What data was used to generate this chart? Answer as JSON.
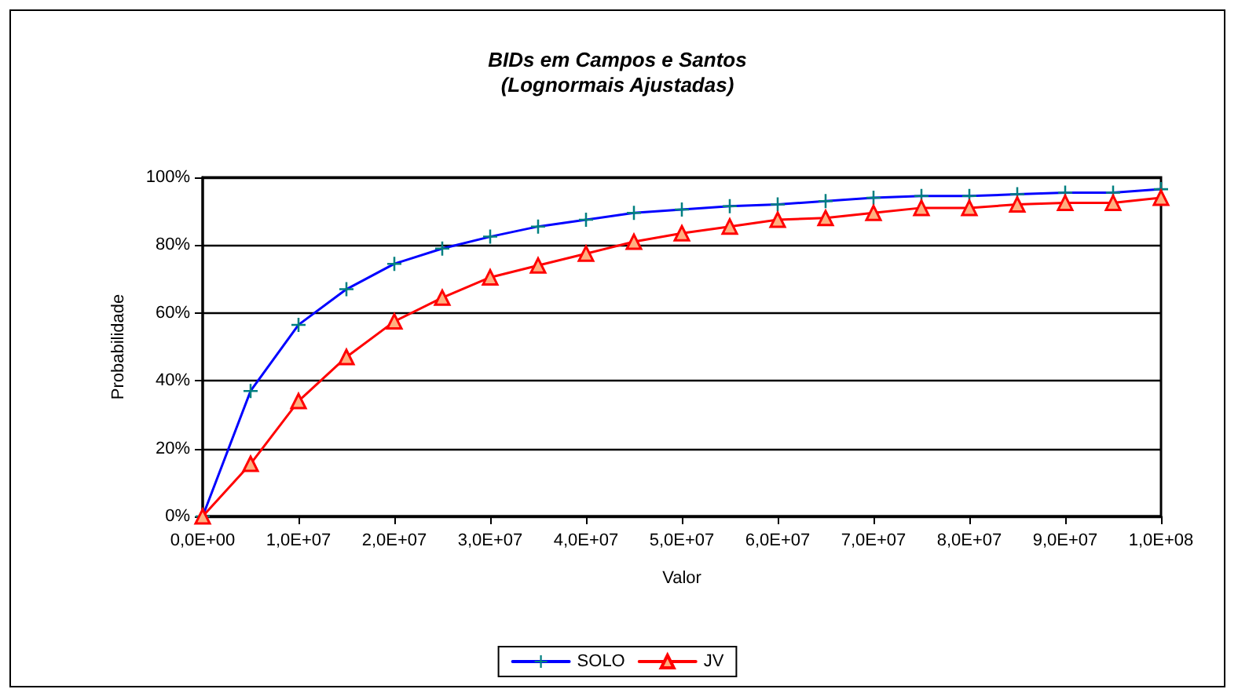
{
  "chart_data": {
    "type": "line",
    "title": "BIDs em Campos e Santos\n(Lognormais Ajustadas)",
    "xlabel": "Valor",
    "ylabel": "Probabilidade",
    "categories": [
      "0,0E+00",
      null,
      "1,0E+07",
      null,
      "2,0E+07",
      null,
      "3,0E+07",
      null,
      "4,0E+07",
      null,
      "5,0E+07",
      null,
      "6,0E+07",
      null,
      "7,0E+07",
      null,
      "8,0E+07",
      null,
      "9,0E+07",
      null,
      "1,0E+08"
    ],
    "series": [
      {
        "name": "SOLO",
        "color": "#0000ff",
        "marker": "cross",
        "values": [
          0,
          37,
          56.5,
          67,
          74.5,
          79,
          82.5,
          85.5,
          87.5,
          89.5,
          90.5,
          91.5,
          92,
          93,
          94,
          94.5,
          94.5,
          95,
          95.5,
          95.5,
          96.5
        ]
      },
      {
        "name": "JV",
        "color": "#ff0000",
        "marker": "triangle",
        "values": [
          0,
          15.5,
          34,
          47,
          57.5,
          64.5,
          70.5,
          74,
          77.5,
          81,
          83.5,
          85.5,
          87.5,
          88,
          89.5,
          91,
          91,
          92,
          92.5,
          92.5,
          94
        ]
      }
    ],
    "ylim": [
      0,
      100
    ],
    "yticks": [
      {
        "value": 0,
        "label": "0%"
      },
      {
        "value": 20,
        "label": "20%"
      },
      {
        "value": 40,
        "label": "40%"
      },
      {
        "value": 60,
        "label": "60%"
      },
      {
        "value": 80,
        "label": "80%"
      },
      {
        "value": 100,
        "label": "100%"
      }
    ],
    "grid": "y",
    "legend": "bottom",
    "line_style": "solid"
  }
}
